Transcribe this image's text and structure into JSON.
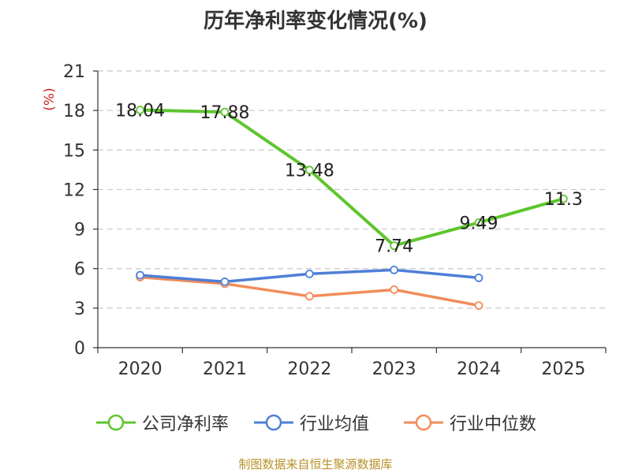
{
  "chart_data": {
    "type": "line",
    "title": "历年净利率变化情况(%)",
    "ylabel": "(%)",
    "xlabel": "",
    "categories": [
      "2020",
      "2021",
      "2022",
      "2023",
      "2024",
      "2025"
    ],
    "ylim": [
      0,
      21
    ],
    "yticks": [
      0,
      3,
      6,
      9,
      12,
      15,
      18,
      21
    ],
    "grid": true,
    "legend_position": "bottom",
    "series": [
      {
        "name": "公司净利率",
        "color": "#5ec52e",
        "values": [
          18.04,
          17.88,
          13.48,
          7.74,
          9.49,
          11.3
        ],
        "labels": [
          "18.04",
          "17.88",
          "13.48",
          "7.74",
          "9.49",
          "11.3"
        ]
      },
      {
        "name": "行业均值",
        "color": "#4f7fd6",
        "values": [
          5.5,
          5.0,
          5.6,
          5.9,
          5.3,
          null
        ]
      },
      {
        "name": "行业中位数",
        "color": "#f28c5a",
        "values": [
          5.35,
          4.85,
          3.9,
          4.4,
          3.2,
          null
        ]
      }
    ]
  },
  "source": "制图数据来自恒生聚源数据库"
}
